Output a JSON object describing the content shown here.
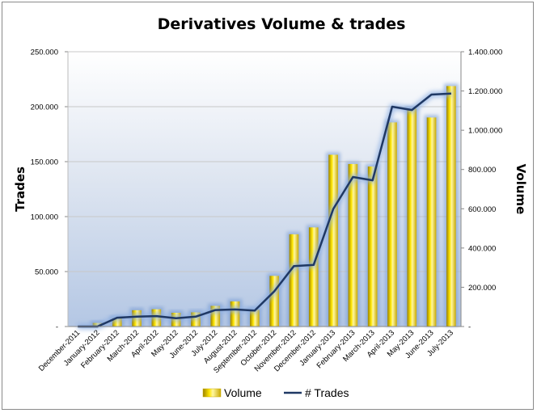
{
  "chart_data": {
    "type": "bar",
    "title": "Derivatives Volume & trades",
    "categories": [
      "December-2011",
      "January-2012",
      "February-2012",
      "March-2012",
      "April-2012",
      "May-2012",
      "June-2012",
      "July-2012",
      "August-2012",
      "September-2012",
      "October-2012",
      "November-2012",
      "December-2012",
      "January-2013",
      "February-2013",
      "March-2013",
      "April-2013",
      "May-2013",
      "June-2013",
      "July-2013"
    ],
    "series": [
      {
        "name": "Volume",
        "type": "bar",
        "axis": "right",
        "color": "#f0d000",
        "values": [
          0,
          18000,
          42000,
          83000,
          88000,
          70000,
          72000,
          105000,
          128000,
          85000,
          258000,
          470000,
          505000,
          875000,
          828000,
          815000,
          1040000,
          1110000,
          1065000,
          1225000
        ]
      },
      {
        "name": "# Trades",
        "type": "line",
        "axis": "left",
        "color": "#1f3864",
        "values": [
          0,
          0,
          8000,
          9000,
          9500,
          7500,
          9000,
          15000,
          15500,
          14500,
          32000,
          55000,
          56000,
          107000,
          136000,
          133000,
          200000,
          197000,
          211000,
          212000
        ]
      }
    ],
    "ylabel": "Trades",
    "y2label": "Volume",
    "ylim": [
      0,
      250000
    ],
    "y2lim": [
      0,
      1400000
    ],
    "yticks": [
      "-",
      "50.000",
      "100.000",
      "150.000",
      "200.000",
      "250.000"
    ],
    "y2ticks": [
      "-",
      "200.000",
      "400.000",
      "600.000",
      "800.000",
      "1.000.000",
      "1.200.000",
      "1.400.000"
    ],
    "legend_position": "bottom",
    "legend": [
      "Volume",
      "# Trades"
    ],
    "grid": "horizontal major at left-axis ticks"
  }
}
